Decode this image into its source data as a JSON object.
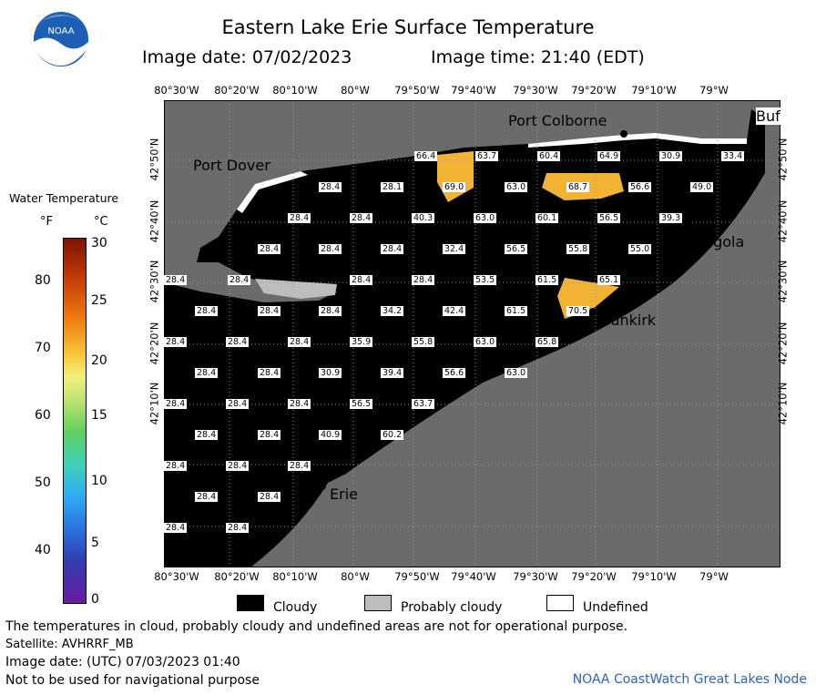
{
  "header": {
    "title": "Eastern Lake Erie Surface Temperature",
    "image_date": "Image date: 07/02/2023",
    "image_time": "Image time: 21:40 (EDT)"
  },
  "logo": {
    "text": "NOAA"
  },
  "axes": {
    "lon_labels": [
      "80°30'W",
      "80°20'W",
      "80°10'W",
      "80°W",
      "79°50'W",
      "79°40'W",
      "79°30'W",
      "79°20'W",
      "79°10'W",
      "79°W"
    ],
    "lat_labels": [
      "42°50'N",
      "42°40'N",
      "42°30'N",
      "42°20'N",
      "42°10'N"
    ]
  },
  "legend": {
    "title": "Water Temperature",
    "unit_f": "°F",
    "unit_c": "°C",
    "f_labels": [
      "80",
      "70",
      "60",
      "50",
      "40"
    ],
    "c_labels": [
      "30",
      "25",
      "20",
      "15",
      "10",
      "5",
      "0"
    ]
  },
  "key": {
    "cloudy": "Cloudy",
    "probably_cloudy": "Probably cloudy",
    "undefined": "Undefined"
  },
  "places": {
    "port_colborne": "Port Colborne",
    "port_dover": "Port Dover",
    "buffalo": "Buf",
    "angola": "Angola",
    "dunkirk": "Dunkirk",
    "erie": "Erie"
  },
  "temperatures": [
    "66.4",
    "63.7",
    "60.4",
    "64.9",
    "30.9",
    "33.4",
    "28.4",
    "28.1",
    "69.0",
    "63.0",
    "68.7",
    "56.6",
    "49.0",
    "28.4",
    "28.4",
    "40.3",
    "63.0",
    "60.1",
    "56.5",
    "39.3",
    "28.4",
    "28.4",
    "28.4",
    "32.4",
    "56.5",
    "55.8",
    "55.0",
    "28.4",
    "28.4",
    "28.4",
    "28.4",
    "53.5",
    "61.5",
    "65.1",
    "28.4",
    "28.4",
    "28.4",
    "34.2",
    "42.4",
    "61.5",
    "70.5",
    "28.4",
    "28.4",
    "28.4",
    "35.9",
    "55.8",
    "63.0",
    "65.8",
    "28.4",
    "28.4",
    "30.9",
    "39.4",
    "56.6",
    "63.0",
    "28.4",
    "28.4",
    "28.4",
    "56.5",
    "63.7",
    "28.4",
    "28.4",
    "40.9",
    "60.2",
    "28.4",
    "28.4",
    "28.4",
    "28.4",
    "28.4",
    "28.4",
    "28.4"
  ],
  "footer": {
    "note": "The temperatures in cloud, probably cloudy and undefined areas are not for operational purpose.",
    "satellite": "Satellite: AVHRRF_MB",
    "utc_date": "Image date: (UTC) 07/03/2023  01:40",
    "nav_warning": "Not to be used for navigational purpose",
    "credit": "NOAA CoastWatch Great Lakes Node"
  },
  "colors": {
    "land": "#6b6b6b",
    "cloud": "#000000",
    "probably_cloudy": "#bdbdbd",
    "warm_water": "#f2b233",
    "credit": "#2a63c4"
  }
}
